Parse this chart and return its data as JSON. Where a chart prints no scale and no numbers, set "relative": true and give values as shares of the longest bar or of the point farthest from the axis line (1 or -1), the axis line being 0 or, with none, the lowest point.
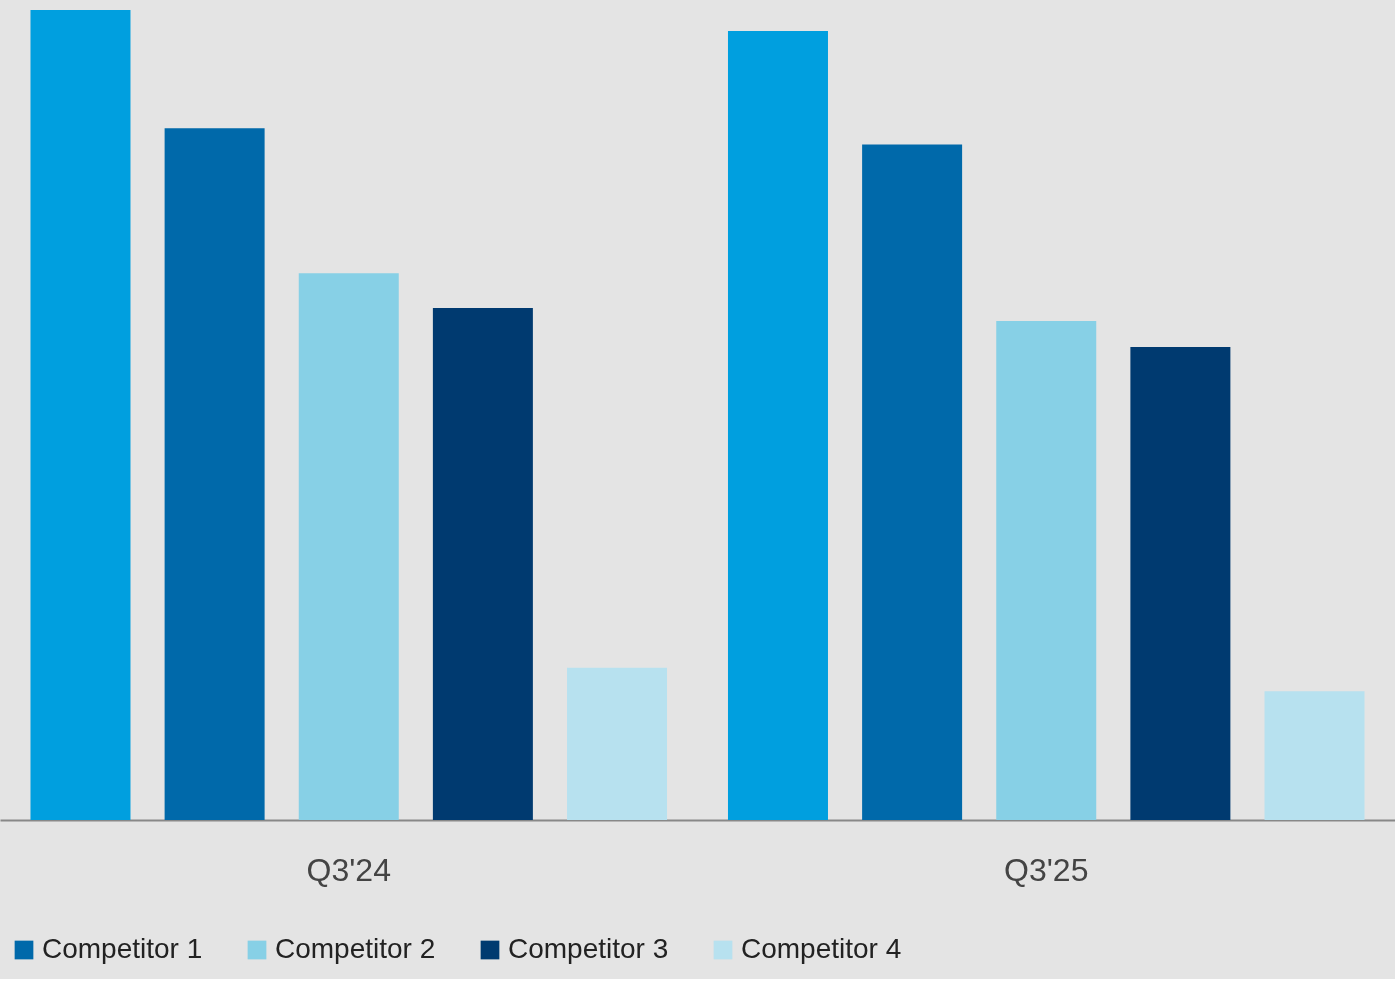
{
  "chart_data": {
    "type": "bar",
    "relative": true,
    "categories": [
      "Q3'24",
      "Q3'25"
    ],
    "series": [
      {
        "color": "#009fdf",
        "values": [
          1.0,
          0.974
        ]
      },
      {
        "name": "Competitor 1",
        "color": "#0069aa",
        "values": [
          0.854,
          0.834
        ]
      },
      {
        "name": "Competitor 2",
        "color": "#87d0e6",
        "values": [
          0.675,
          0.616
        ]
      },
      {
        "name": "Competitor 3",
        "color": "#003a70",
        "values": [
          0.632,
          0.584
        ]
      },
      {
        "name": "Competitor 4",
        "color": "#b7e1ef",
        "values": [
          0.188,
          0.159
        ]
      }
    ],
    "legend": "bottom",
    "grid": false
  }
}
